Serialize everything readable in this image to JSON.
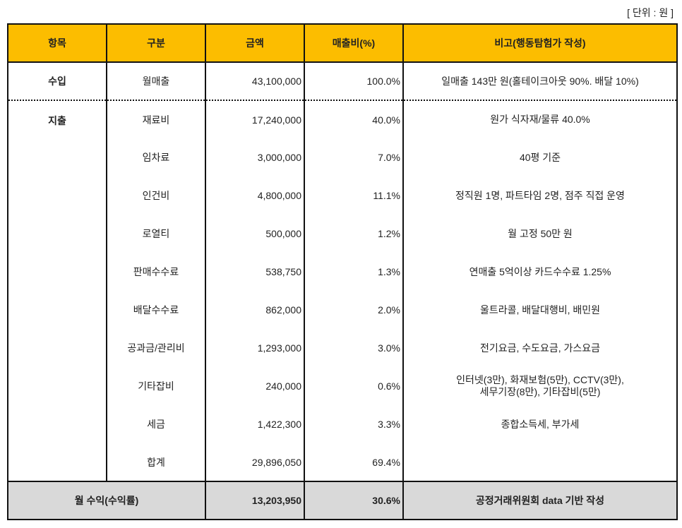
{
  "unit": "[ 단위 : 원 ]",
  "headers": [
    "항목",
    "구분",
    "금액",
    "매출비(%)",
    "비고(행동탐험가 작성)"
  ],
  "income": {
    "category": "수입",
    "item": "월매출",
    "amount": "43,100,000",
    "ratio": "100.0%",
    "note": "일매출 143만 원(홀테이크아웃 90%. 배달 10%)"
  },
  "expense_category": "지출",
  "expenses": [
    {
      "item": "재료비",
      "amount": "17,240,000",
      "ratio": "40.0%",
      "note": "원가 식자재/물류 40.0%"
    },
    {
      "item": "임차료",
      "amount": "3,000,000",
      "ratio": "7.0%",
      "note": "40평 기준"
    },
    {
      "item": "인건비",
      "amount": "4,800,000",
      "ratio": "11.1%",
      "note": "정직원 1명, 파트타임 2명, 점주 직접 운영"
    },
    {
      "item": "로열티",
      "amount": "500,000",
      "ratio": "1.2%",
      "note": "월 고정 50만 원"
    },
    {
      "item": "판매수수료",
      "amount": "538,750",
      "ratio": "1.3%",
      "note": "연매출 5억이상 카드수수료 1.25%"
    },
    {
      "item": "배달수수료",
      "amount": "862,000",
      "ratio": "2.0%",
      "note": "울트라콜, 배달대행비, 배민원"
    },
    {
      "item": "공과금/관리비",
      "amount": "1,293,000",
      "ratio": "3.0%",
      "note": "전기요금, 수도요금, 가스요금"
    },
    {
      "item": "기타잡비",
      "amount": "240,000",
      "ratio": "0.6%",
      "note": "인터넷(3만), 화재보험(5만), CCTV(3만),",
      "note2": "세무기장(8만), 기타잡비(5만)"
    },
    {
      "item": "세금",
      "amount": "1,422,300",
      "ratio": "3.3%",
      "note": "종합소득세, 부가세"
    },
    {
      "item": "합계",
      "amount": "29,896,050",
      "ratio": "69.4%",
      "note": ""
    }
  ],
  "profit": {
    "label": "월 수익(수익률)",
    "amount": "13,203,950",
    "ratio": "30.6%",
    "note": "공정거래위원회 data 기반 작성"
  }
}
